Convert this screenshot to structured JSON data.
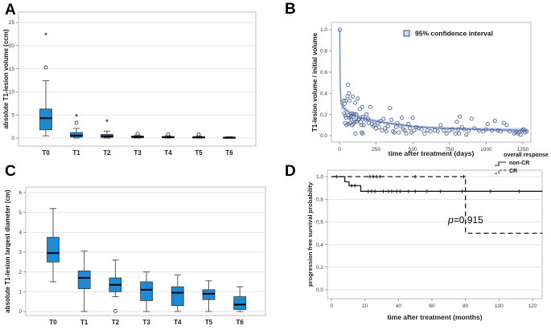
{
  "colors": {
    "box_fill": "#1f8ad4",
    "box_border": "#3c3c3c",
    "median": "#000000",
    "whisker": "#5a5a5a",
    "grid": "#e4e4e4",
    "frame": "#bdbdbd",
    "tick_text": "#3a3a3a",
    "axis_text": "#1a1a1a",
    "scatter_stroke": "#51689b",
    "band_fill": "#b7c9e6",
    "fit_line": "#6f88b5",
    "km_line": "#1a1a1a"
  },
  "chart_data": [
    {
      "panel": "A",
      "type": "box",
      "ylabel": "absolute T1-lesion volume (ccm)",
      "yticks": [
        0,
        5,
        10,
        15,
        20,
        25
      ],
      "ylim": [
        0,
        25
      ],
      "categories": [
        "T0",
        "T1",
        "T2",
        "T3",
        "T4",
        "T5",
        "T6"
      ],
      "boxes": [
        {
          "q1": 1.8,
          "median": 4.3,
          "q3": 6.3,
          "lo": 0.5,
          "hi": 12.4,
          "outliers": [
            {
              "v": 15.3,
              "sym": "circle"
            },
            {
              "v": 22.2,
              "sym": "asterisk"
            }
          ]
        },
        {
          "q1": 0.2,
          "median": 0.55,
          "q3": 1.2,
          "lo": 0.0,
          "hi": 2.1,
          "outliers": [
            {
              "v": 3.3,
              "sym": "circle"
            },
            {
              "v": 4.6,
              "sym": "asterisk"
            }
          ]
        },
        {
          "q1": 0.15,
          "median": 0.4,
          "q3": 0.8,
          "lo": 0.0,
          "hi": 1.5,
          "outliers": [
            {
              "v": 3.5,
              "sym": "asterisk"
            }
          ]
        },
        {
          "q1": 0.1,
          "median": 0.25,
          "q3": 0.45,
          "lo": 0.0,
          "hi": 0.65,
          "outliers": [
            {
              "v": 0.95,
              "sym": "circle"
            }
          ]
        },
        {
          "q1": 0.05,
          "median": 0.2,
          "q3": 0.35,
          "lo": 0.0,
          "hi": 0.5,
          "outliers": [
            {
              "v": 0.85,
              "sym": "circle"
            }
          ]
        },
        {
          "q1": 0.05,
          "median": 0.15,
          "q3": 0.3,
          "lo": 0.0,
          "hi": 0.45,
          "outliers": [
            {
              "v": 0.8,
              "sym": "circle"
            }
          ]
        },
        {
          "q1": 0.02,
          "median": 0.1,
          "q3": 0.2,
          "lo": 0.0,
          "hi": 0.3,
          "outliers": []
        }
      ]
    },
    {
      "panel": "B",
      "type": "scatter",
      "xlabel": "time after treatment (days)",
      "ylabel": "T1-lesion volume / initial volume",
      "xticks": [
        0,
        250,
        500,
        750,
        1000,
        1250
      ],
      "ytick_labels": [
        "0.0",
        "0.2",
        "0.4",
        "0.6",
        "0.8",
        "1.0"
      ],
      "yticks": [
        0,
        0.2,
        0.4,
        0.6,
        0.8,
        1.0
      ],
      "xlim": [
        0,
        1300
      ],
      "ylim": [
        0,
        1.0
      ],
      "legend": {
        "marker": "square",
        "label": "95% confidence interval"
      },
      "points": [
        [
          3,
          1.0
        ],
        [
          30,
          0.33
        ],
        [
          32,
          0.21
        ],
        [
          35,
          0.3
        ],
        [
          38,
          0.12
        ],
        [
          40,
          0.19
        ],
        [
          42,
          0.33
        ],
        [
          45,
          0.17
        ],
        [
          48,
          0.1
        ],
        [
          55,
          0.37
        ],
        [
          58,
          0.48
        ],
        [
          60,
          0.11
        ],
        [
          62,
          0.19
        ],
        [
          65,
          0.4
        ],
        [
          68,
          0.17
        ],
        [
          70,
          0.33
        ],
        [
          72,
          0.12
        ],
        [
          75,
          0.18
        ],
        [
          80,
          0.16
        ],
        [
          85,
          0.1
        ],
        [
          88,
          0.21
        ],
        [
          90,
          0.37
        ],
        [
          95,
          0.11
        ],
        [
          98,
          0.15
        ],
        [
          100,
          0.2
        ],
        [
          105,
          0.13
        ],
        [
          108,
          0.31
        ],
        [
          110,
          0.02
        ],
        [
          115,
          0.2
        ],
        [
          118,
          0.13
        ],
        [
          125,
          0.35
        ],
        [
          130,
          0.15
        ],
        [
          135,
          0.16
        ],
        [
          140,
          0.25
        ],
        [
          145,
          0.13
        ],
        [
          150,
          0.1
        ],
        [
          152,
          0.03
        ],
        [
          155,
          0.27
        ],
        [
          158,
          0.02
        ],
        [
          160,
          0.18
        ],
        [
          165,
          0.1
        ],
        [
          175,
          0.15
        ],
        [
          185,
          0.2
        ],
        [
          195,
          0.16
        ],
        [
          200,
          0.12
        ],
        [
          210,
          0.27
        ],
        [
          220,
          0.11
        ],
        [
          230,
          0.09
        ],
        [
          240,
          0.1
        ],
        [
          250,
          0.07
        ],
        [
          260,
          0.12
        ],
        [
          270,
          0.08
        ],
        [
          280,
          0.14
        ],
        [
          290,
          0.05
        ],
        [
          300,
          0.16
        ],
        [
          310,
          0.07
        ],
        [
          320,
          0.04
        ],
        [
          330,
          0.09
        ],
        [
          345,
          0.26
        ],
        [
          355,
          0.15
        ],
        [
          365,
          0.04
        ],
        [
          375,
          0.03
        ],
        [
          385,
          0.08
        ],
        [
          395,
          0.12
        ],
        [
          405,
          0.03
        ],
        [
          415,
          0.09
        ],
        [
          425,
          0.17
        ],
        [
          435,
          0.06
        ],
        [
          445,
          0.05
        ],
        [
          455,
          0.02
        ],
        [
          470,
          0.11
        ],
        [
          480,
          0.07
        ],
        [
          490,
          0.03
        ],
        [
          500,
          0.17
        ],
        [
          510,
          0.05
        ],
        [
          525,
          0.08
        ],
        [
          540,
          0.07
        ],
        [
          560,
          0.06
        ],
        [
          580,
          0.02
        ],
        [
          600,
          0.05
        ],
        [
          620,
          0.04
        ],
        [
          650,
          0.05
        ],
        [
          670,
          0.04
        ],
        [
          690,
          0.1
        ],
        [
          710,
          0.05
        ],
        [
          730,
          0.02
        ],
        [
          750,
          0.05
        ],
        [
          770,
          0.06
        ],
        [
          790,
          0.02
        ],
        [
          800,
          0.13
        ],
        [
          810,
          0.06
        ],
        [
          815,
          0.02
        ],
        [
          820,
          0.18
        ],
        [
          835,
          0.08
        ],
        [
          850,
          0.06
        ],
        [
          865,
          0.01
        ],
        [
          880,
          0.05
        ],
        [
          900,
          0.16
        ],
        [
          920,
          0.07
        ],
        [
          950,
          0.05
        ],
        [
          980,
          0.04
        ],
        [
          1000,
          0.06
        ],
        [
          1010,
          0.11
        ],
        [
          1040,
          0.05
        ],
        [
          1060,
          0.14
        ],
        [
          1080,
          0.05
        ],
        [
          1100,
          0.04
        ],
        [
          1120,
          0.12
        ],
        [
          1140,
          0.1
        ],
        [
          1160,
          0.04
        ],
        [
          1190,
          0.02
        ],
        [
          1200,
          0.03
        ],
        [
          1215,
          0.02
        ],
        [
          1225,
          0.03
        ],
        [
          1235,
          0.01
        ],
        [
          1245,
          0.05
        ],
        [
          1255,
          0.06
        ],
        [
          1265,
          0.03
        ],
        [
          1275,
          0.04
        ]
      ],
      "fit_line": {
        "x": [
          2,
          5,
          10,
          20,
          40,
          60,
          100,
          150,
          200,
          300,
          400,
          500,
          600,
          700,
          800,
          900,
          1000,
          1100,
          1200,
          1280
        ],
        "y": [
          1.0,
          0.5,
          0.31,
          0.28,
          0.245,
          0.225,
          0.19,
          0.165,
          0.15,
          0.125,
          0.105,
          0.088,
          0.078,
          0.07,
          0.065,
          0.06,
          0.057,
          0.054,
          0.052,
          0.05
        ]
      },
      "band": {
        "x": [
          10,
          20,
          40,
          100,
          200,
          300,
          400,
          500,
          600,
          700,
          800,
          900,
          1000,
          1100,
          1200,
          1280
        ],
        "upper": [
          0.38,
          0.32,
          0.27,
          0.21,
          0.17,
          0.14,
          0.12,
          0.1,
          0.09,
          0.085,
          0.08,
          0.078,
          0.075,
          0.073,
          0.072,
          0.072
        ],
        "lower": [
          0.24,
          0.25,
          0.22,
          0.17,
          0.13,
          0.11,
          0.09,
          0.075,
          0.065,
          0.06,
          0.055,
          0.05,
          0.045,
          0.04,
          0.035,
          0.03
        ]
      }
    },
    {
      "panel": "C",
      "type": "box",
      "ylabel": "absolute T1-lesion largest diameter (cm)",
      "yticks": [
        0,
        1,
        2,
        3,
        4,
        5,
        6
      ],
      "ylim": [
        0,
        6
      ],
      "categories": [
        "T0",
        "T1",
        "T2",
        "T3",
        "T4",
        "T5",
        "T6"
      ],
      "boxes": [
        {
          "q1": 2.5,
          "median": 2.95,
          "q3": 3.75,
          "lo": 1.5,
          "hi": 5.2,
          "outliers": []
        },
        {
          "q1": 1.15,
          "median": 1.7,
          "q3": 2.05,
          "lo": 0.0,
          "hi": 3.05,
          "outliers": []
        },
        {
          "q1": 1.0,
          "median": 1.35,
          "q3": 1.7,
          "lo": 0.75,
          "hi": 2.6,
          "outliers": [
            {
              "v": 0.02,
              "sym": "circle"
            }
          ]
        },
        {
          "q1": 0.55,
          "median": 1.1,
          "q3": 1.5,
          "lo": 0.0,
          "hi": 2.0,
          "outliers": []
        },
        {
          "q1": 0.3,
          "median": 0.95,
          "q3": 1.25,
          "lo": 0.0,
          "hi": 1.85,
          "outliers": []
        },
        {
          "q1": 0.6,
          "median": 0.9,
          "q3": 1.1,
          "lo": 0.0,
          "hi": 1.55,
          "outliers": []
        },
        {
          "q1": 0.1,
          "median": 0.35,
          "q3": 0.75,
          "lo": 0.0,
          "hi": 1.25,
          "outliers": []
        }
      ]
    },
    {
      "panel": "D",
      "type": "km",
      "xlabel": "time after treatment (months)",
      "ylabel": "progression free survival probability",
      "xticks": [
        0,
        20,
        40,
        60,
        80,
        100,
        120
      ],
      "ytick_labels": [
        "0,0",
        "0,2",
        "0,4",
        "0,6",
        "0,8",
        "1,0"
      ],
      "yticks": [
        0,
        0.2,
        0.4,
        0.6,
        0.8,
        1.0
      ],
      "xlim": [
        0,
        126
      ],
      "ylim": [
        0,
        1.0
      ],
      "annotation": {
        "italic": "p",
        "rest": "=0.915"
      },
      "legend": {
        "title": "overall response",
        "items": [
          {
            "label": "non-CR",
            "style": "solid"
          },
          {
            "label": "CR",
            "style": "dashed"
          }
        ]
      },
      "series": [
        {
          "name": "non-CR",
          "style": "solid",
          "steps": [
            [
              0,
              1.0
            ],
            [
              8,
              1.0
            ],
            [
              8,
              0.955
            ],
            [
              10.5,
              0.955
            ],
            [
              10.5,
              0.92
            ],
            [
              17.5,
              0.92
            ],
            [
              17.5,
              0.87
            ],
            [
              126,
              0.87
            ]
          ],
          "censors": [
            [
              3,
              1.0
            ],
            [
              12,
              0.92
            ],
            [
              14,
              0.92
            ],
            [
              22,
              0.87
            ],
            [
              24,
              0.87
            ],
            [
              26,
              0.87
            ],
            [
              31,
              0.87
            ],
            [
              34,
              0.87
            ],
            [
              36,
              0.87
            ],
            [
              39,
              0.87
            ],
            [
              41,
              0.87
            ],
            [
              46,
              0.87
            ],
            [
              50,
              0.87
            ],
            [
              57,
              0.87
            ],
            [
              65,
              0.87
            ],
            [
              78,
              0.87
            ],
            [
              95,
              0.87
            ],
            [
              112,
              0.87
            ]
          ]
        },
        {
          "name": "CR",
          "style": "dashed",
          "steps": [
            [
              0,
              1.0
            ],
            [
              80,
              1.0
            ],
            [
              80,
              0.5
            ],
            [
              126,
              0.5
            ]
          ],
          "censors": [
            [
              23,
              1.0
            ],
            [
              25,
              1.0
            ],
            [
              27,
              1.0
            ],
            [
              29,
              1.0
            ],
            [
              50,
              1.0
            ],
            [
              79,
              1.0
            ]
          ]
        }
      ]
    }
  ]
}
